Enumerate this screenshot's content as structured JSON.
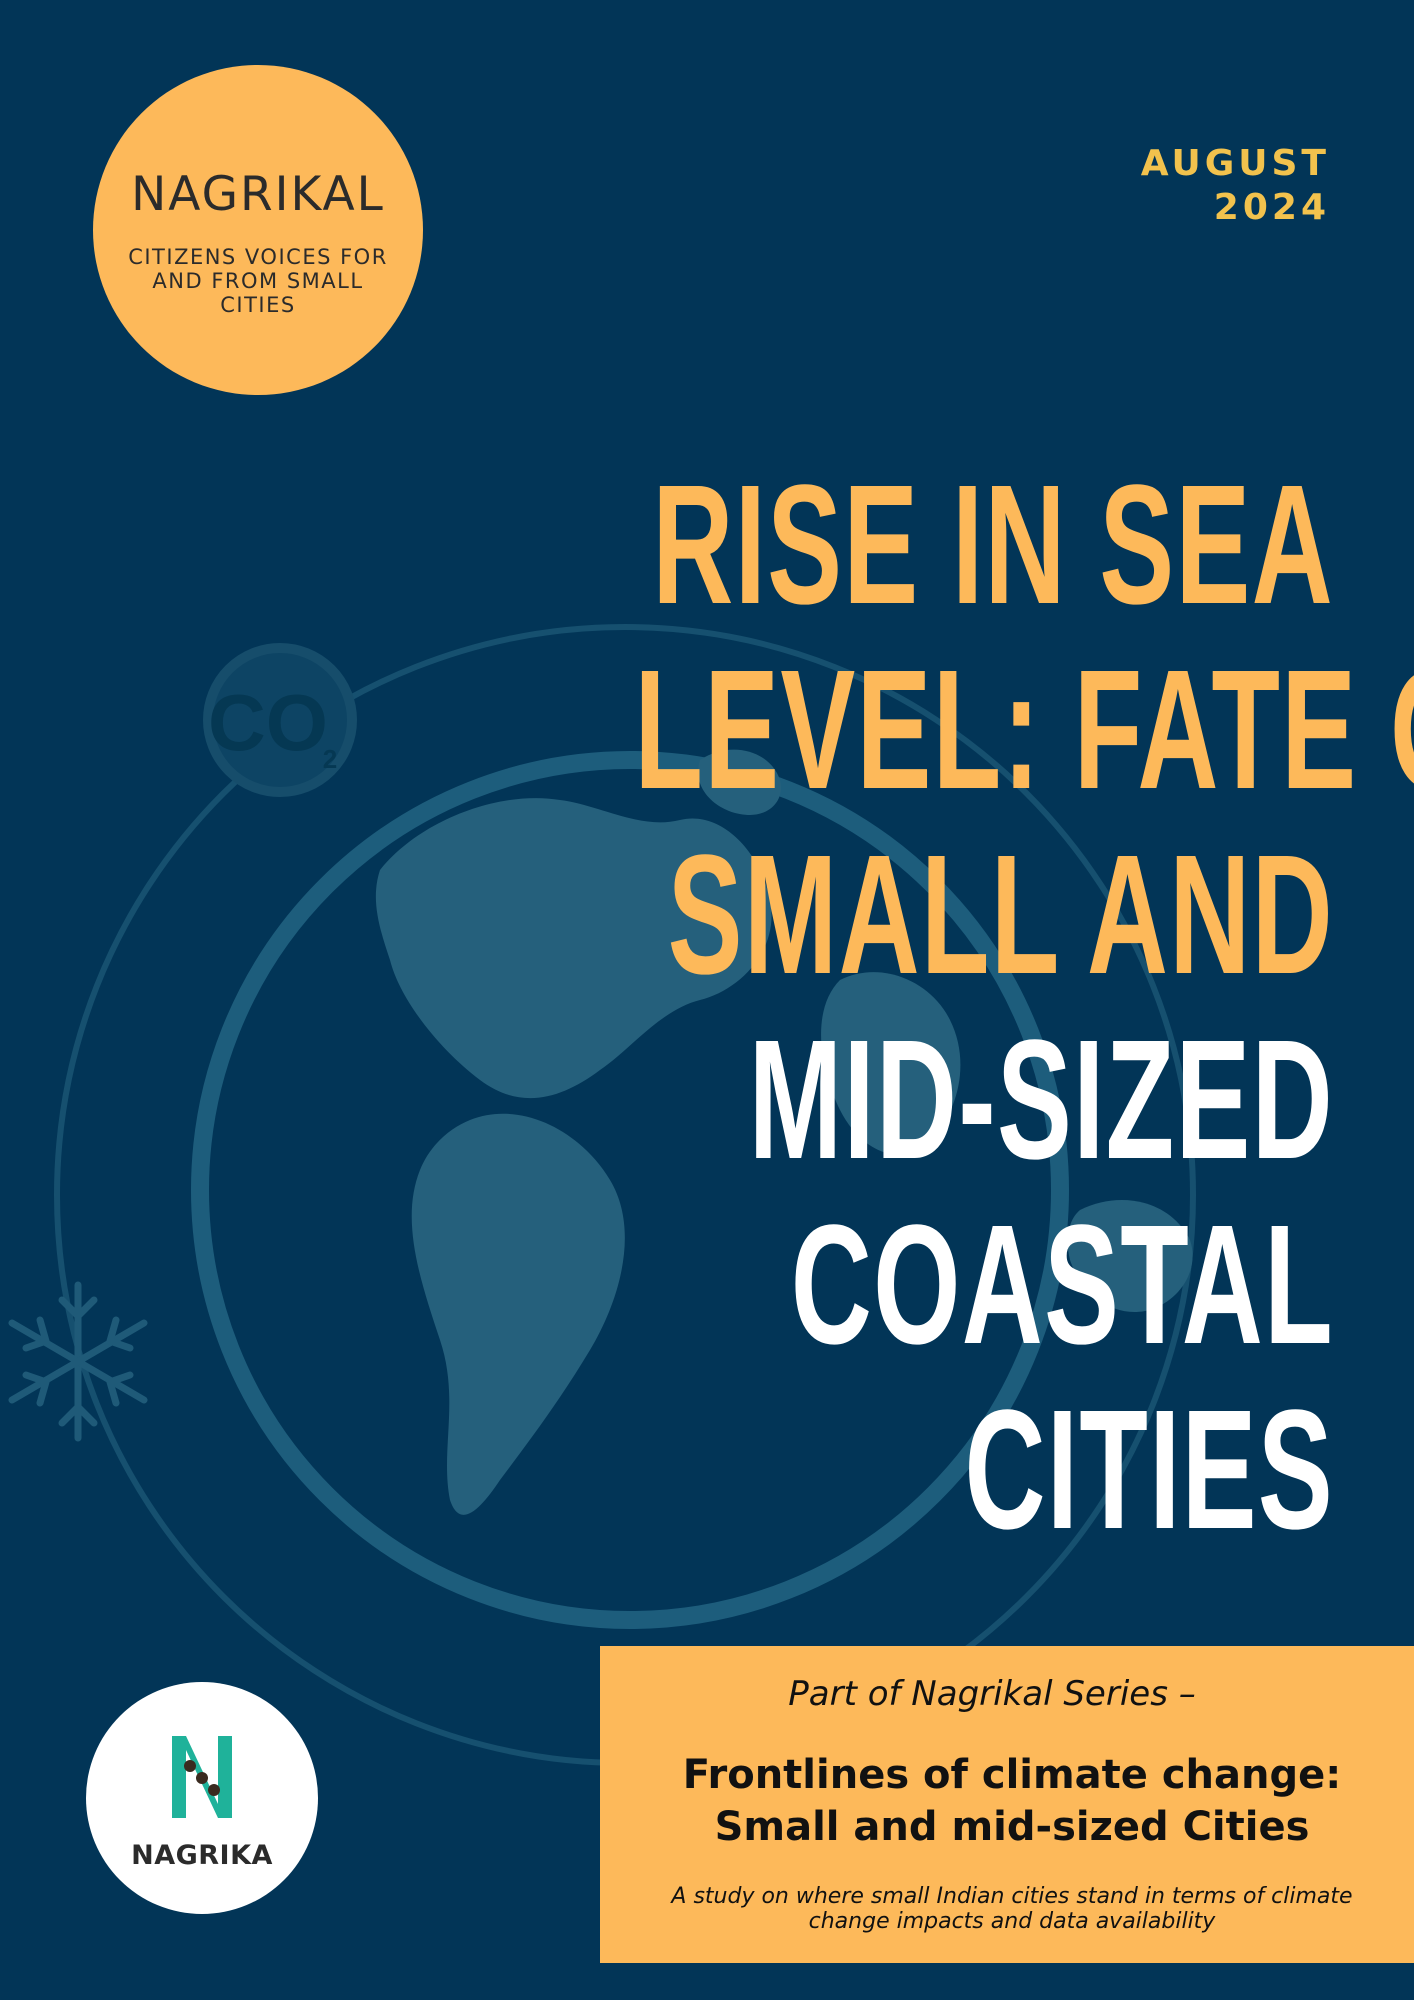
{
  "badge": {
    "title": "NAGRIKAL",
    "tagline": "CITIZENS VOICES FOR AND FROM SMALL CITIES"
  },
  "date": {
    "month": "AUGUST",
    "year": "2024"
  },
  "title": {
    "line1": "RISE IN SEA",
    "line2": "LEVEL: FATE OF",
    "line3": "SMALL AND",
    "line4": "MID-SIZED",
    "line5": "COASTAL",
    "line6": "CITIES"
  },
  "background": {
    "co2_label": "CO",
    "co2_subscript": "2"
  },
  "series": {
    "intro": "Part of Nagrikal Series –",
    "name_line1": "Frontlines of climate change:",
    "name_line2": "Small and mid-sized Cities",
    "description": "A study on where small Indian cities stand in terms of climate change impacts and data availability"
  },
  "org": {
    "name": "NAGRIKA"
  },
  "colors": {
    "background": "#023557",
    "accent_yellow": "#fdb95a",
    "date_yellow": "#f2c24d",
    "white": "#ffffff",
    "org_green": "#1fb29a"
  }
}
